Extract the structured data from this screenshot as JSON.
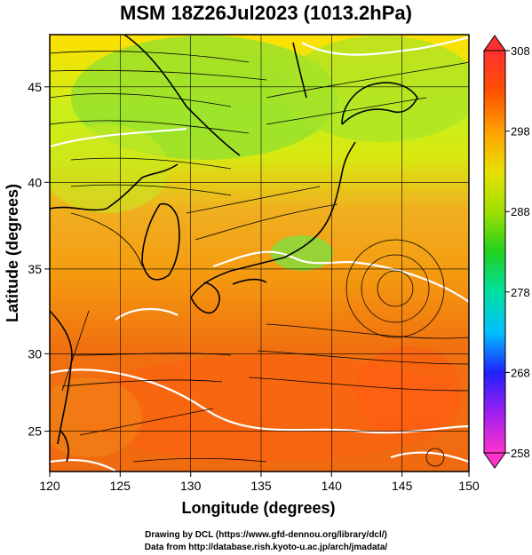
{
  "title": "MSM 18Z26Jul2023 (1013.2hPa)",
  "footer": {
    "line1": "Drawing by DCL (https://www.gfd-dennou.org/library/dcl/)",
    "line2": "Data from http://database.rish.kyoto-u.ac.jp/arch/jmadata/"
  },
  "map": {
    "xlabel": "Longitude (degrees)",
    "ylabel": "Latitude  (degrees)",
    "lon_range": [
      120,
      150
    ],
    "lat_range": [
      22.4,
      47.6
    ],
    "lon_ticks": [
      "120",
      "125",
      "130",
      "135",
      "140",
      "145",
      "150"
    ],
    "lat_ticks": [
      "25",
      "30",
      "35",
      "40",
      "45"
    ],
    "gridlines": true,
    "field": "surface temperature with streamlines",
    "contour_color": "#ffffff"
  },
  "colorbar": {
    "min": 258,
    "max": 308,
    "tick_labels": [
      "308",
      "298",
      "288",
      "278",
      "268",
      "258"
    ],
    "colors": [
      "#ff33cc",
      "#a020f0",
      "#2020ff",
      "#00c0ff",
      "#00e0a0",
      "#20d020",
      "#a0e000",
      "#e8e000",
      "#ffa000",
      "#ff5000",
      "#ff3030"
    ]
  }
}
